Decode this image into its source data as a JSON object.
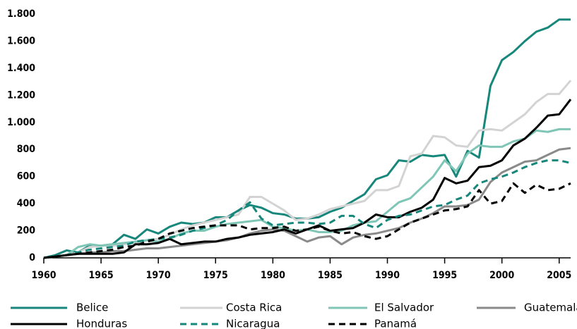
{
  "chart_data": {
    "type": "line",
    "x": [
      1960,
      1961,
      1962,
      1963,
      1964,
      1965,
      1966,
      1967,
      1968,
      1969,
      1970,
      1971,
      1972,
      1973,
      1974,
      1975,
      1976,
      1977,
      1978,
      1979,
      1980,
      1981,
      1982,
      1983,
      1984,
      1985,
      1986,
      1987,
      1988,
      1989,
      1990,
      1991,
      1992,
      1993,
      1994,
      1995,
      1996,
      1997,
      1998,
      1999,
      2000,
      2001,
      2002,
      2003,
      2004,
      2005,
      2006
    ],
    "xlim": [
      1960,
      2006
    ],
    "xticks": [
      1960,
      1965,
      1970,
      1975,
      1980,
      1985,
      1990,
      1995,
      2000,
      2005
    ],
    "ylim": [
      0,
      1800
    ],
    "yticks": [
      0,
      200,
      400,
      600,
      800,
      {
        "value": 1000,
        "label": "1.000"
      },
      {
        "value": 1200,
        "label": "1.200"
      },
      {
        "value": 1400,
        "label": "1.400"
      },
      {
        "value": 1600,
        "label": "1.600"
      },
      {
        "value": 1800,
        "label": "1.800"
      }
    ],
    "grid": false,
    "legend": "bottom",
    "series": [
      {
        "name": "Belice",
        "color": "#16877a",
        "dashed": false,
        "values": [
          0,
          20,
          55,
          40,
          90,
          90,
          100,
          170,
          140,
          210,
          180,
          230,
          260,
          250,
          260,
          300,
          300,
          350,
          390,
          370,
          330,
          320,
          290,
          290,
          300,
          340,
          370,
          420,
          470,
          580,
          610,
          720,
          710,
          760,
          750,
          760,
          600,
          790,
          740,
          1270,
          1460,
          1520,
          1600,
          1670,
          1700,
          1760,
          1760
        ]
      },
      {
        "name": "Costa Rica",
        "color": "#d3d3d3",
        "dashed": false,
        "values": [
          0,
          10,
          20,
          40,
          80,
          90,
          90,
          100,
          110,
          130,
          140,
          170,
          210,
          240,
          260,
          280,
          300,
          320,
          450,
          450,
          400,
          350,
          280,
          290,
          320,
          360,
          380,
          400,
          420,
          500,
          500,
          530,
          750,
          770,
          900,
          890,
          830,
          820,
          940,
          950,
          940,
          1000,
          1060,
          1150,
          1210,
          1210,
          1310
        ]
      },
      {
        "name": "El Salvador",
        "color": "#7fc6b6",
        "dashed": false,
        "values": [
          0,
          10,
          20,
          80,
          100,
          90,
          100,
          110,
          120,
          130,
          120,
          140,
          180,
          200,
          200,
          230,
          250,
          260,
          270,
          280,
          230,
          220,
          200,
          210,
          190,
          190,
          200,
          240,
          260,
          270,
          340,
          410,
          440,
          520,
          600,
          720,
          640,
          770,
          830,
          820,
          820,
          860,
          880,
          940,
          930,
          950,
          950
        ]
      },
      {
        "name": "Guatemala",
        "color": "#8a8a8a",
        "dashed": false,
        "values": [
          0,
          10,
          20,
          30,
          40,
          40,
          50,
          50,
          60,
          70,
          70,
          80,
          90,
          100,
          110,
          120,
          130,
          150,
          180,
          200,
          210,
          200,
          160,
          120,
          150,
          160,
          100,
          150,
          170,
          180,
          200,
          220,
          260,
          290,
          330,
          380,
          380,
          390,
          430,
          560,
          630,
          670,
          710,
          720,
          760,
          800,
          810
        ]
      },
      {
        "name": "Honduras",
        "color": "#000000",
        "dashed": false,
        "values": [
          0,
          10,
          20,
          30,
          30,
          30,
          30,
          40,
          100,
          100,
          110,
          140,
          100,
          110,
          120,
          120,
          140,
          150,
          170,
          180,
          190,
          210,
          180,
          210,
          240,
          200,
          210,
          220,
          260,
          320,
          300,
          300,
          340,
          370,
          430,
          590,
          550,
          570,
          670,
          680,
          720,
          830,
          880,
          960,
          1050,
          1060,
          1170
        ]
      },
      {
        "name": "Nicaragua",
        "color": "#16877a",
        "dashed": true,
        "values": [
          0,
          10,
          20,
          40,
          60,
          70,
          80,
          90,
          120,
          130,
          140,
          150,
          170,
          200,
          220,
          240,
          280,
          350,
          410,
          290,
          240,
          250,
          260,
          260,
          250,
          260,
          310,
          310,
          250,
          220,
          280,
          310,
          320,
          350,
          380,
          390,
          430,
          460,
          550,
          580,
          600,
          630,
          670,
          700,
          720,
          720,
          700
        ]
      },
      {
        "name": "Panamá",
        "color": "#000000",
        "dashed": true,
        "values": [
          0,
          10,
          20,
          30,
          40,
          50,
          60,
          80,
          90,
          120,
          140,
          180,
          200,
          220,
          230,
          240,
          240,
          240,
          210,
          220,
          220,
          230,
          200,
          210,
          230,
          200,
          180,
          190,
          160,
          140,
          160,
          210,
          260,
          290,
          320,
          350,
          360,
          380,
          500,
          400,
          420,
          550,
          480,
          540,
          500,
          510,
          550
        ]
      }
    ]
  }
}
